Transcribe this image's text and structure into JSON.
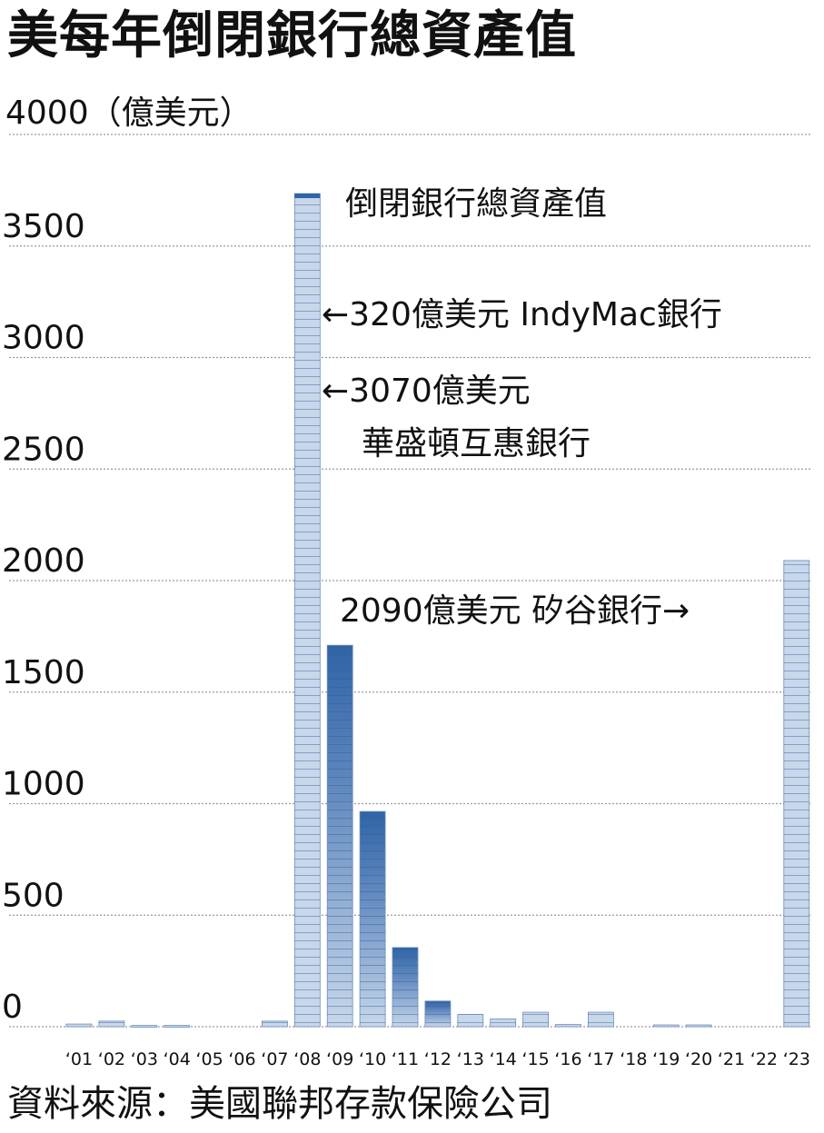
{
  "title": "美每年倒閉銀行總資產值",
  "y_unit": "4000（億美元）",
  "source": "資料來源：美國聯邦存款保險公司",
  "colors": {
    "bar_light": "#c8d7ea",
    "bar_dark": "#2f64a6",
    "bar_edge": "#6d8fbc",
    "grid": "#9a9a9a"
  },
  "chart_data": {
    "type": "bar",
    "title": "美每年倒閉銀行總資產值",
    "ylabel": "4000（億美元）",
    "xlabel": "",
    "ylim": [
      0,
      4000
    ],
    "yticks": [
      0,
      500,
      1000,
      1500,
      2000,
      2500,
      3000,
      3500
    ],
    "categories": [
      "‘01",
      "‘02",
      "‘03",
      "‘04",
      "‘05",
      "‘06",
      "‘07",
      "‘08",
      "‘09",
      "‘10",
      "‘11",
      "‘12",
      "‘13",
      "‘14",
      "‘15",
      "‘16",
      "‘17",
      "‘18",
      "‘19",
      "‘20",
      "‘21",
      "‘22",
      "‘23"
    ],
    "values": [
      12,
      25,
      6,
      6,
      0,
      0,
      25,
      3735,
      1710,
      965,
      355,
      115,
      55,
      35,
      65,
      10,
      65,
      0,
      8,
      8,
      0,
      0,
      2090
    ],
    "grid": true,
    "annotations": [
      {
        "text": "倒閉銀行總資產值",
        "category": "‘08",
        "y": 3720
      },
      {
        "text": "←320億美元  IndyMac銀行",
        "category": "‘08",
        "y": 3200
      },
      {
        "text": "←3070億美元",
        "category": "‘08",
        "y": 2870
      },
      {
        "text": "華盛頓互惠銀行",
        "category": "‘08",
        "y": 2640
      },
      {
        "text": "2090億美元  矽谷銀行→",
        "category": "‘23",
        "y": 1860
      }
    ]
  }
}
